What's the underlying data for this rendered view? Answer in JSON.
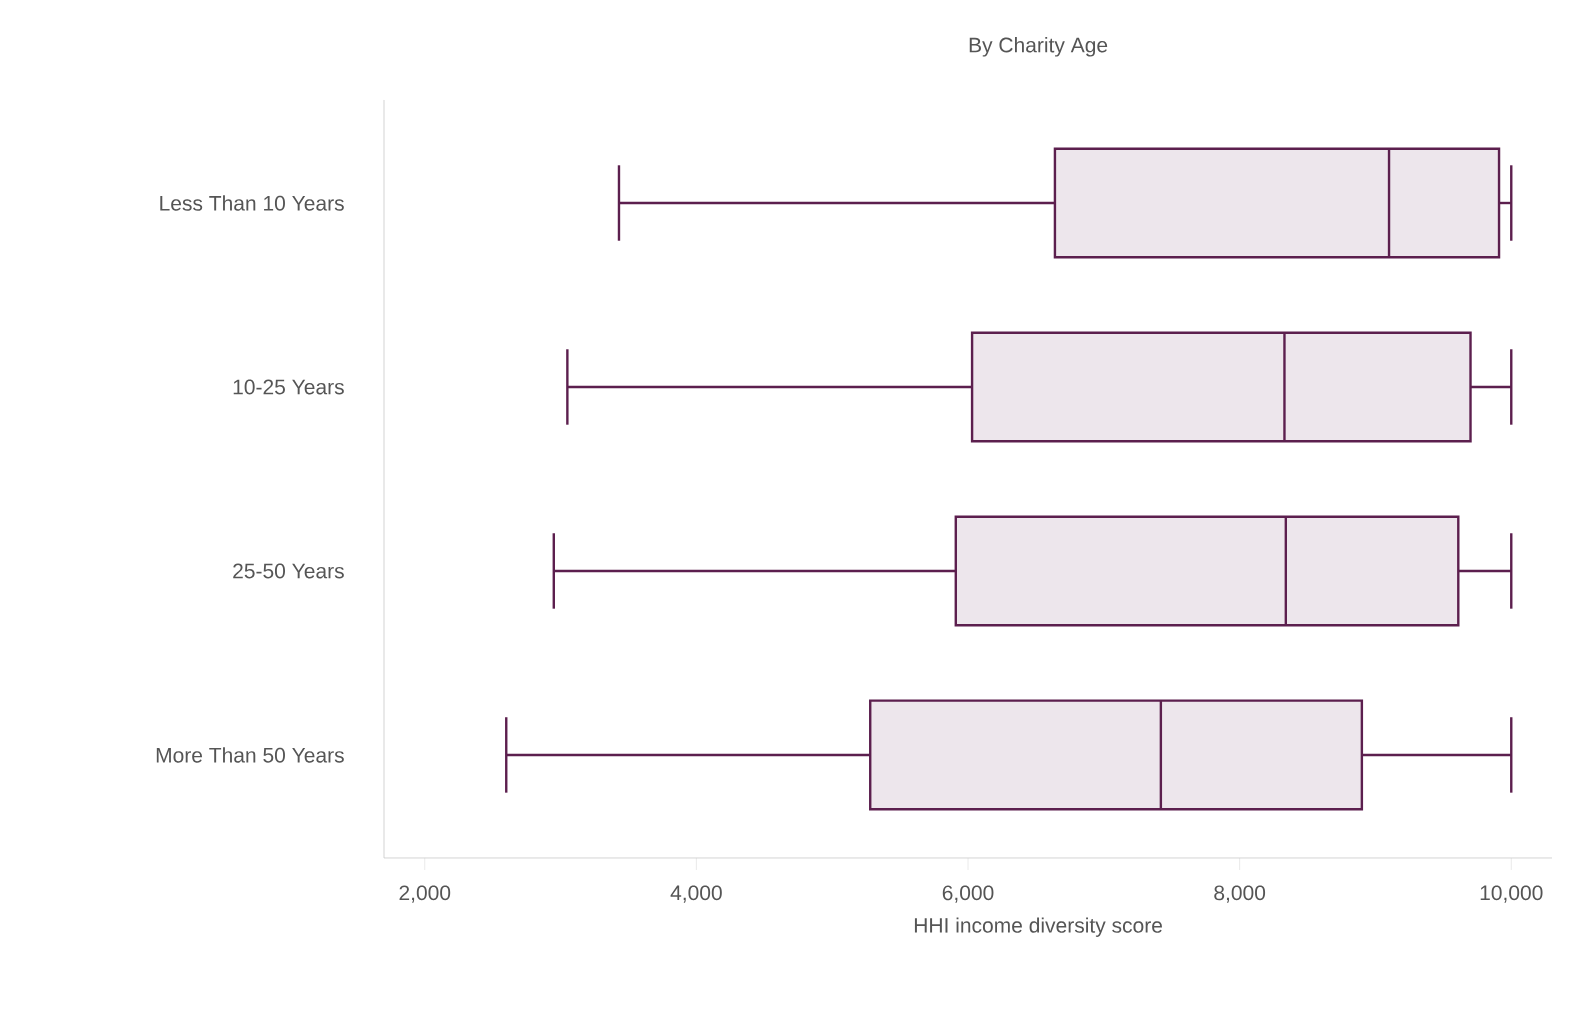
{
  "chart_data": {
    "type": "box",
    "orientation": "horizontal",
    "title": "By Charity Age",
    "xlabel": "HHI income diversity score",
    "categories": [
      "Less Than 10 Years",
      "10-25 Years",
      "25-50 Years",
      "More Than 50 Years"
    ],
    "color": "#5c1f4e",
    "boxes": [
      {
        "low": 3430,
        "q1": 6640,
        "median": 9100,
        "q3": 9910,
        "high": 10000
      },
      {
        "low": 3050,
        "q1": 6030,
        "median": 8330,
        "q3": 9700,
        "high": 10000
      },
      {
        "low": 2950,
        "q1": 5910,
        "median": 8340,
        "q3": 9610,
        "high": 10000
      },
      {
        "low": 2600,
        "q1": 5280,
        "median": 7420,
        "q3": 8900,
        "high": 10000
      }
    ],
    "xlim": [
      1700,
      10300
    ],
    "xticks": [
      {
        "value": 2000,
        "label": "2,000"
      },
      {
        "value": 4000,
        "label": "4,000"
      },
      {
        "value": 6000,
        "label": "6,000"
      },
      {
        "value": 8000,
        "label": "8,000"
      },
      {
        "value": 10000,
        "label": "10,000"
      }
    ]
  }
}
